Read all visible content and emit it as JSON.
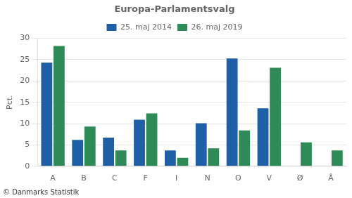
{
  "chart_data": {
    "type": "bar",
    "title": "Europa-Parlamentsvalg",
    "categories": [
      "A",
      "B",
      "C",
      "F",
      "I",
      "N",
      "O",
      "V",
      "Ø",
      "Å"
    ],
    "series": [
      {
        "name": "25. maj 2014",
        "color": "#1f5fa6",
        "values": [
          24.3,
          6.2,
          6.7,
          10.9,
          3.7,
          10.1,
          25.3,
          13.6,
          0.0,
          0.0
        ]
      },
      {
        "name": "26. maj 2019",
        "color": "#2e8b57",
        "values": [
          28.2,
          9.3,
          3.7,
          12.4,
          2.0,
          4.2,
          8.4,
          23.1,
          5.6,
          3.7
        ]
      }
    ],
    "ylabel": "Pct.",
    "ylim": [
      0,
      30
    ],
    "yticks": [
      0,
      5,
      10,
      15,
      20,
      25,
      30
    ],
    "grid": true,
    "legend": "top",
    "annotations": [
      "© Danmarks Statistik"
    ]
  }
}
